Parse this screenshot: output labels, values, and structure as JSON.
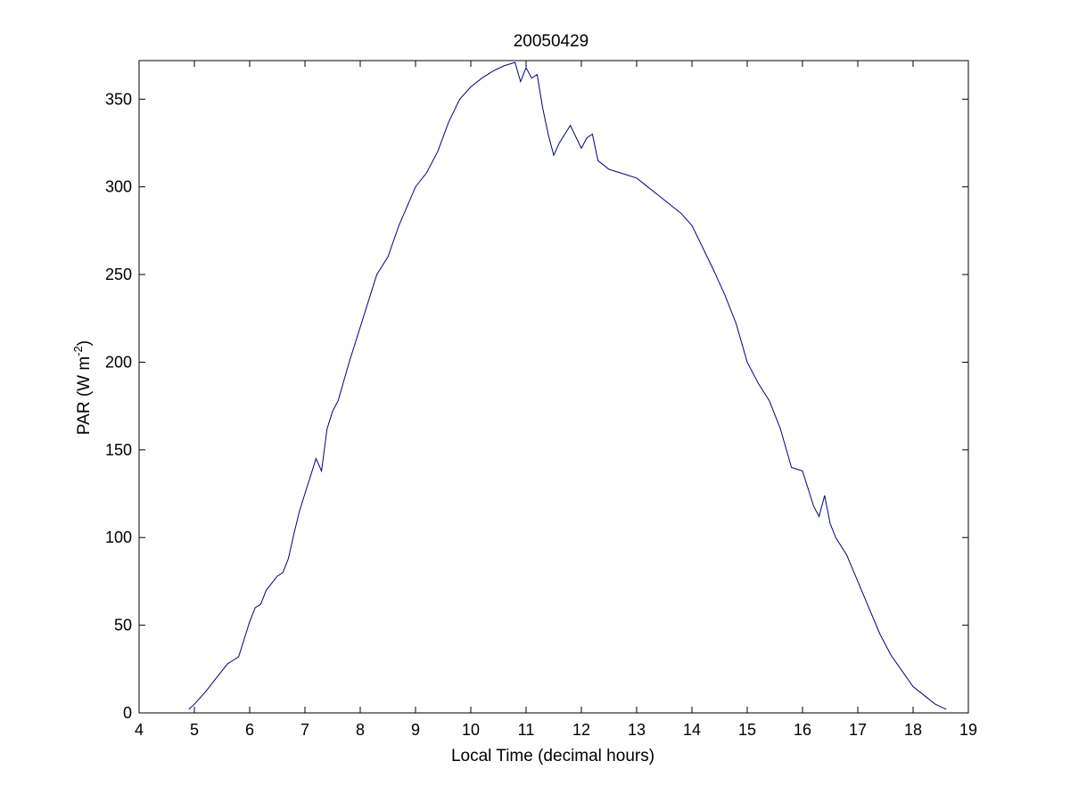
{
  "chart_data": {
    "type": "line",
    "title": "20050429",
    "xlabel": "Local Time (decimal hours)",
    "ylabel_main": "PAR (W m",
    "ylabel_sup": "-2",
    "ylabel_close": ")",
    "xlim": [
      4,
      19
    ],
    "ylim": [
      0,
      372
    ],
    "xticks": [
      4,
      5,
      6,
      7,
      8,
      9,
      10,
      11,
      12,
      13,
      14,
      15,
      16,
      17,
      18,
      19
    ],
    "yticks": [
      0,
      50,
      100,
      150,
      200,
      250,
      300,
      350
    ],
    "grid": false,
    "line_color": "#000080",
    "series": [
      {
        "x": [
          4.9,
          5.0,
          5.2,
          5.4,
          5.6,
          5.7,
          5.8,
          5.9,
          6.0,
          6.1,
          6.2,
          6.3,
          6.5,
          6.6,
          6.7,
          6.8,
          6.9,
          7.0,
          7.1,
          7.2,
          7.3,
          7.4,
          7.5,
          7.6,
          7.8,
          8.0,
          8.2,
          8.3,
          8.5,
          8.7,
          9.0,
          9.2,
          9.4,
          9.6,
          9.8,
          10.0,
          10.2,
          10.4,
          10.6,
          10.8,
          10.9,
          11.0,
          11.1,
          11.2,
          11.3,
          11.4,
          11.5,
          11.6,
          11.8,
          12.0,
          12.1,
          12.2,
          12.3,
          12.5,
          12.7,
          13.0,
          13.2,
          13.4,
          13.6,
          13.8,
          14.0,
          14.2,
          14.4,
          14.6,
          14.8,
          15.0,
          15.2,
          15.4,
          15.6,
          15.8,
          16.0,
          16.1,
          16.2,
          16.3,
          16.4,
          16.5,
          16.6,
          16.8,
          17.0,
          17.2,
          17.4,
          17.6,
          17.8,
          18.0,
          18.2,
          18.4,
          18.6
        ],
        "y": [
          2,
          5,
          12,
          20,
          28,
          30,
          32,
          42,
          52,
          60,
          62,
          70,
          78,
          80,
          88,
          102,
          115,
          125,
          135,
          145,
          138,
          162,
          172,
          178,
          200,
          220,
          240,
          250,
          260,
          278,
          300,
          308,
          320,
          337,
          350,
          357,
          362,
          366,
          369,
          371,
          360,
          368,
          362,
          364,
          345,
          330,
          318,
          325,
          335,
          322,
          328,
          330,
          315,
          310,
          308,
          305,
          300,
          295,
          290,
          285,
          278,
          265,
          252,
          238,
          222,
          200,
          188,
          178,
          162,
          140,
          138,
          128,
          118,
          112,
          124,
          108,
          100,
          90,
          75,
          60,
          45,
          33,
          24,
          15,
          10,
          5,
          2
        ]
      }
    ]
  }
}
